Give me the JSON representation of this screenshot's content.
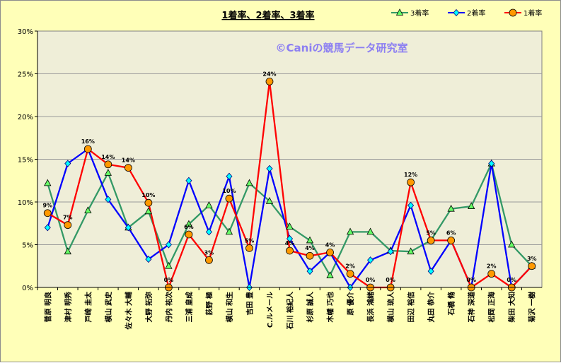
{
  "chart_data": {
    "type": "line",
    "title": "1着率、2着率、3着率",
    "watermark": "©Caniの競馬データ研究室",
    "ylim": [
      0,
      0.3
    ],
    "yticks": [
      "0%",
      "5%",
      "10%",
      "15%",
      "20%",
      "25%",
      "30%"
    ],
    "grid": true,
    "legend_position": "top-right",
    "categories": [
      "菅原 明良",
      "津村 明秀",
      "戸崎 圭太",
      "横山 武史",
      "佐々木 大輔",
      "大野 拓弥",
      "丹内 祐次",
      "三浦 皇成",
      "荻野 極",
      "横山 和生",
      "吉田 豊",
      "C.ルメール",
      "石川 裕紀人",
      "杉原 誠人",
      "木幡 巧也",
      "原 優介",
      "長浜 鴻緒",
      "横山 琉人",
      "田辺 裕信",
      "丸田 恭介",
      "石橋 脩",
      "石神 深道",
      "松岡 正海",
      "柴田 大知",
      "菊沢 一樹"
    ],
    "series": [
      {
        "name": "3着率",
        "color": "#339966",
        "marker": "triangle",
        "values": [
          0.122,
          0.042,
          0.09,
          0.134,
          0.07,
          0.089,
          0.025,
          0.074,
          0.096,
          0.065,
          0.122,
          0.101,
          0.071,
          0.055,
          0.014,
          0.065,
          0.065,
          0.043,
          0.042,
          0.055,
          0.092,
          0.095,
          0.145,
          0.05,
          0.025
        ]
      },
      {
        "name": "2着率",
        "color": "#0000ff",
        "marker": "diamond",
        "values": [
          0.07,
          0.145,
          0.162,
          0.103,
          0.07,
          0.033,
          0.05,
          0.125,
          0.065,
          0.13,
          0.0,
          0.139,
          0.057,
          0.019,
          0.041,
          0.0,
          0.032,
          0.042,
          0.096,
          0.019,
          0.055,
          0.0,
          0.145,
          0.0,
          0.025
        ]
      },
      {
        "name": "1着率",
        "color": "#ff0000",
        "marker": "circle",
        "values": [
          0.087,
          0.073,
          0.162,
          0.144,
          0.14,
          0.099,
          0.0,
          0.062,
          0.032,
          0.104,
          0.046,
          0.241,
          0.043,
          0.037,
          0.041,
          0.016,
          0.0,
          0.0,
          0.123,
          0.055,
          0.055,
          0.0,
          0.016,
          0.0,
          0.025
        ]
      }
    ],
    "data_labels": [
      "9%",
      "7%",
      "16%",
      "14%",
      "14%",
      "10%",
      "0%",
      "6%",
      "3%",
      "10%",
      "5%",
      "24%",
      "4%",
      "4%",
      "4%",
      "2%",
      "0%",
      "0%",
      "12%",
      "5%",
      "6%",
      "0%",
      "2%",
      "0%",
      "3%"
    ]
  }
}
